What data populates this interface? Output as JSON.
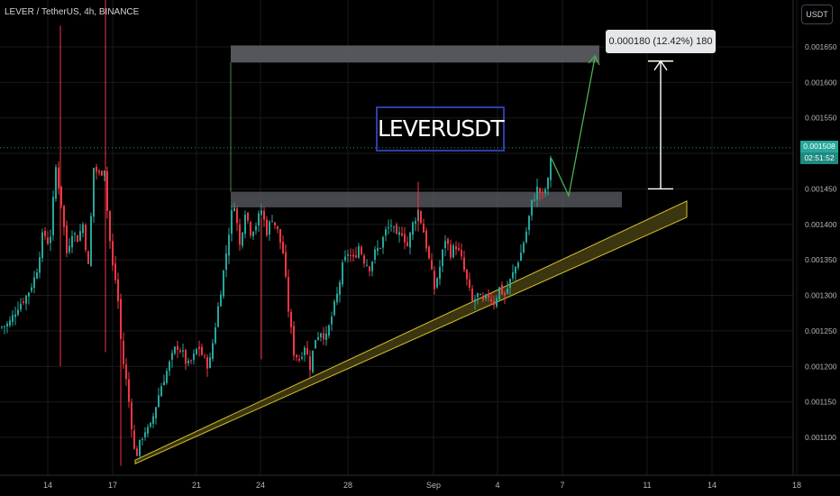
{
  "header": {
    "symbol": "LEVER / TetherUS, 4h, BINANCE"
  },
  "toolbar": {
    "currency": "USDT"
  },
  "annotations": {
    "title": "LEVERUSDT",
    "measure": "0.000180 (12.42%) 180"
  },
  "last_price": {
    "value": "0.001508",
    "countdown": "02:51:52"
  },
  "colors": {
    "up": "#26a69a",
    "down": "#f23645",
    "background": "#000000",
    "zone": "#5d5f66",
    "trendline": "#d4c12a",
    "arrow": "#4caf50",
    "grid": "#1a1a1a",
    "title_border": "#2b3fa8"
  },
  "chart_data": {
    "type": "candlestick",
    "ylim": [
      0.00106,
      0.00171
    ],
    "y_ticks": [
      "0.001650",
      "0.001600",
      "0.001550",
      "0.001500",
      "0.001450",
      "0.001400",
      "0.001350",
      "0.001300",
      "0.001250",
      "0.001200",
      "0.001150",
      "0.001100"
    ],
    "x_ticks": [
      "14",
      "17",
      "21",
      "24",
      "28",
      "Sep",
      "4",
      "7",
      "11",
      "14",
      "18"
    ],
    "current_price": 0.001508,
    "resistance_zone": [
      0.001424,
      0.001446
    ],
    "target_zone": [
      0.001628,
      0.001652
    ],
    "measure": {
      "from": 0.00145,
      "to": 0.00163,
      "change": "0.000180",
      "percent": "12.42%",
      "ticks": 180
    },
    "trendline_support": {
      "from_price": 0.001068,
      "to_price": 0.00141
    }
  }
}
